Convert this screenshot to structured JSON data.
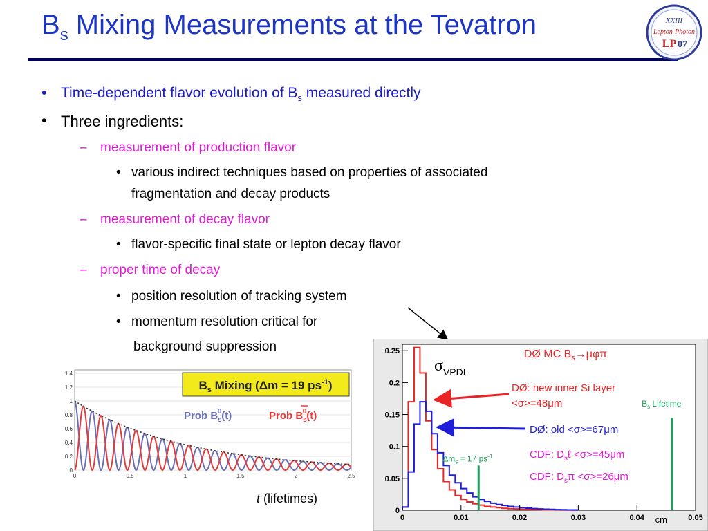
{
  "slide": {
    "title_main": "B",
    "title_sub": "s",
    "title_rest": " Mixing Measurements at the Tevatron",
    "logo": {
      "line1": "XXIII",
      "line2": "Lepton-Photon",
      "line3a": "LP",
      "line3b": "07"
    }
  },
  "bullets": {
    "b1_pre": "Time-dependent flavor evolution of B",
    "b1_sub": "s",
    "b1_post": " measured directly",
    "b2": "Three ingredients:",
    "d1": "measurement of production flavor",
    "d1_s1_line1": "various indirect techniques based on properties of associated",
    "d1_s1_line2": "fragmentation and decay products",
    "d2": "measurement of decay flavor",
    "d2_s1": "flavor-specific final state or lepton decay flavor",
    "d3": "proper time of decay",
    "d3_s1": "position resolution of tracking system",
    "d3_s2_line1": "momentum resolution critical for",
    "d3_s2_line2": "background suppression"
  },
  "markers": {
    "bullet": "•",
    "dash": "–"
  },
  "colors": {
    "title": "#1c35c4",
    "bullet_blue": "#1c1cc4",
    "pink": "#e01bd3",
    "red": "#e82424",
    "blue_series": "#1f1fd9",
    "green": "#1aa05a",
    "label_box": "#f2ea1a"
  },
  "chart_data": [
    {
      "type": "line",
      "title": "B_s Mixing (Δm = 19 ps^-1)",
      "title_parts": {
        "pre": "B",
        "sub": "s",
        "mid": " Mixing (Δm = 19 ps",
        "sup": "-1",
        "post": ")"
      },
      "xlabel_italic": "t",
      "xlabel_rest": " (lifetimes)",
      "x_ticks": [
        "0",
        "0.5",
        "1",
        "1.5",
        "2",
        "2.5"
      ],
      "y_ticks": [
        "0",
        "0.2",
        "0.4",
        "0.6",
        "0.8",
        "1",
        "1.2",
        "1.4"
      ],
      "xlim": [
        0,
        2.5
      ],
      "ylim": [
        0,
        1.45
      ],
      "mixing_frequency_label": "Δm = 19 ps^-1",
      "series": [
        {
          "name": "Prob B_s^0(t)",
          "label_main": "Prob B",
          "label_sub": "s",
          "label_sup": "0",
          "label_end": "(t)",
          "color": "#6b6fb3",
          "formula": "exp(-t)*(1+cos(2*pi*t*n))/2",
          "oscillations_per_lifetime": 6.3
        },
        {
          "name": "Prob B̄_s^0(t)",
          "label_main": "Prob B",
          "label_sub": "s",
          "label_sup": "0",
          "label_end": "(t)",
          "bar": true,
          "color": "#e23b3b",
          "formula": "exp(-t)*(1-cos(2*pi*t*n))/2",
          "oscillations_per_lifetime": 6.3
        },
        {
          "name": "envelope",
          "color": "#333333",
          "dotted": true,
          "formula": "exp(-t)"
        }
      ]
    },
    {
      "type": "line",
      "title": "DØ MC B_s→μφπ",
      "title_parts": {
        "pre": "DØ MC B",
        "sub": "s",
        "post": "→μφπ"
      },
      "sigma_label": {
        "main": "σ",
        "sub": "VPDL"
      },
      "xlabel": "cm",
      "x_ticks": [
        "0",
        "0.01",
        "0.02",
        "0.03",
        "0.04",
        "0.05"
      ],
      "y_ticks": [
        "0",
        "0.05",
        "0.1",
        "0.15",
        "0.2",
        "0.25"
      ],
      "xlim": [
        0,
        0.05
      ],
      "ylim": [
        0,
        0.26
      ],
      "bin_width": 0.001,
      "series": [
        {
          "name": "DØ: new inner Si layer <σ>=48μm",
          "label_line1": "DØ: new inner Si layer",
          "label_line2": "<σ>=48μm",
          "color": "#e82424",
          "values": [
            0.005,
            0.17,
            0.255,
            0.215,
            0.14,
            0.095,
            0.065,
            0.045,
            0.032,
            0.023,
            0.017,
            0.013,
            0.01,
            0.008,
            0.006,
            0.005,
            0.004,
            0.003,
            0.0025,
            0.002,
            0.0015,
            0.0012,
            0.001,
            0.0008,
            0.0006,
            0.0005,
            0.0004,
            0.0003,
            0.0003,
            0.0002
          ]
        },
        {
          "name": "DØ: old <σ>=67μm",
          "label": "DØ: old <σ>=67μm",
          "color": "#1f1fd9",
          "values": [
            0.005,
            0.06,
            0.135,
            0.17,
            0.155,
            0.12,
            0.09,
            0.07,
            0.055,
            0.043,
            0.034,
            0.027,
            0.021,
            0.017,
            0.014,
            0.011,
            0.009,
            0.0075,
            0.006,
            0.005,
            0.004,
            0.0032,
            0.0026,
            0.002,
            0.0016,
            0.0013,
            0.001,
            0.0008,
            0.0006,
            0.0005
          ]
        }
      ],
      "annotations": [
        {
          "kind": "vline",
          "x": 0.013,
          "y_top": 0.07,
          "color": "#1aa05a",
          "label_parts": {
            "pre": "Δm",
            "sub": "s",
            "mid": " = 17 ps",
            "sup": "-1"
          }
        },
        {
          "kind": "vline",
          "x": 0.046,
          "y_top": 0.145,
          "color": "#1aa05a",
          "label_parts": {
            "pre": "B",
            "sub": "s",
            "post": " Lifetime"
          }
        }
      ],
      "cdf_entries": [
        {
          "pre": "CDF: D",
          "sub": "s",
          "particle": "ℓ",
          "res": " <σ>=45μm"
        },
        {
          "pre": "CDF: D",
          "sub": "s",
          "particle": "π",
          "res": " <σ>=26μm"
        }
      ]
    }
  ]
}
